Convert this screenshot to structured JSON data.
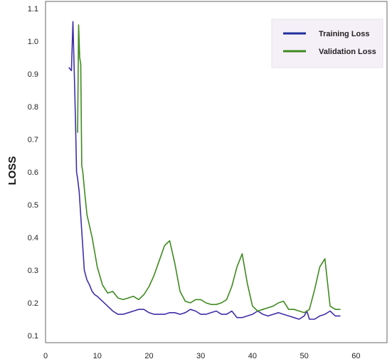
{
  "chart_data": {
    "type": "line",
    "title": "",
    "xlabel": "",
    "ylabel": "LOSS",
    "xlim": [
      0,
      66
    ],
    "ylim": [
      0.1,
      1.1
    ],
    "xticks": [
      0,
      10,
      20,
      30,
      40,
      50,
      60
    ],
    "yticks": [
      0.1,
      0.2,
      0.3,
      0.4,
      0.5,
      0.6,
      0.7,
      0.8,
      0.9,
      1.0,
      1.1
    ],
    "grid": false,
    "legend_position": "top-right",
    "series": [
      {
        "name": "Training Loss",
        "color": "#3f2fa8",
        "x": [
          4.5,
          5.0,
          5.3,
          5.6,
          5.8,
          6.0,
          6.2,
          6.5,
          7.0,
          7.5,
          8.0,
          8.5,
          9.0,
          9.5,
          10,
          11,
          12,
          13,
          14,
          15,
          16,
          17,
          18,
          19,
          20,
          21,
          22,
          23,
          24,
          25,
          26,
          27,
          28,
          29,
          30,
          31,
          32,
          33,
          34,
          35,
          36,
          37,
          38,
          39,
          40,
          41,
          42,
          43,
          44,
          45,
          46,
          47,
          48,
          49,
          50,
          50.5,
          51,
          52,
          53,
          54,
          55,
          56,
          57
        ],
        "y": [
          0.92,
          0.91,
          1.06,
          0.88,
          0.75,
          0.6,
          0.58,
          0.54,
          0.42,
          0.3,
          0.27,
          0.255,
          0.235,
          0.225,
          0.22,
          0.205,
          0.19,
          0.175,
          0.165,
          0.165,
          0.17,
          0.175,
          0.18,
          0.18,
          0.17,
          0.165,
          0.165,
          0.165,
          0.17,
          0.17,
          0.165,
          0.17,
          0.18,
          0.175,
          0.165,
          0.165,
          0.17,
          0.175,
          0.165,
          0.165,
          0.175,
          0.155,
          0.155,
          0.16,
          0.165,
          0.175,
          0.165,
          0.16,
          0.165,
          0.17,
          0.165,
          0.16,
          0.155,
          0.15,
          0.16,
          0.175,
          0.15,
          0.15,
          0.16,
          0.165,
          0.175,
          0.16,
          0.16
        ]
      },
      {
        "name": "Validation Loss",
        "color": "#3e8a1f",
        "x": [
          6.2,
          6.4,
          6.6,
          6.8,
          7.0,
          7.2,
          7.5,
          8,
          9,
          10,
          11,
          12,
          13,
          14,
          15,
          16,
          17,
          18,
          19,
          20,
          21,
          22,
          23,
          24,
          25,
          26,
          27,
          28,
          29,
          30,
          31,
          32,
          33,
          34,
          35,
          36,
          37,
          38,
          39,
          40,
          41,
          42,
          43,
          44,
          45,
          46,
          47,
          48,
          49,
          50,
          51,
          52,
          53,
          54,
          55,
          56,
          57
        ],
        "y": [
          0.72,
          1.05,
          0.95,
          0.93,
          0.62,
          0.6,
          0.55,
          0.47,
          0.4,
          0.31,
          0.255,
          0.23,
          0.235,
          0.215,
          0.21,
          0.215,
          0.22,
          0.21,
          0.225,
          0.25,
          0.285,
          0.33,
          0.375,
          0.39,
          0.32,
          0.235,
          0.205,
          0.2,
          0.21,
          0.21,
          0.2,
          0.195,
          0.195,
          0.2,
          0.21,
          0.25,
          0.31,
          0.35,
          0.26,
          0.19,
          0.175,
          0.18,
          0.185,
          0.19,
          0.2,
          0.205,
          0.18,
          0.18,
          0.175,
          0.17,
          0.18,
          0.24,
          0.31,
          0.335,
          0.19,
          0.18,
          0.18
        ]
      }
    ]
  }
}
